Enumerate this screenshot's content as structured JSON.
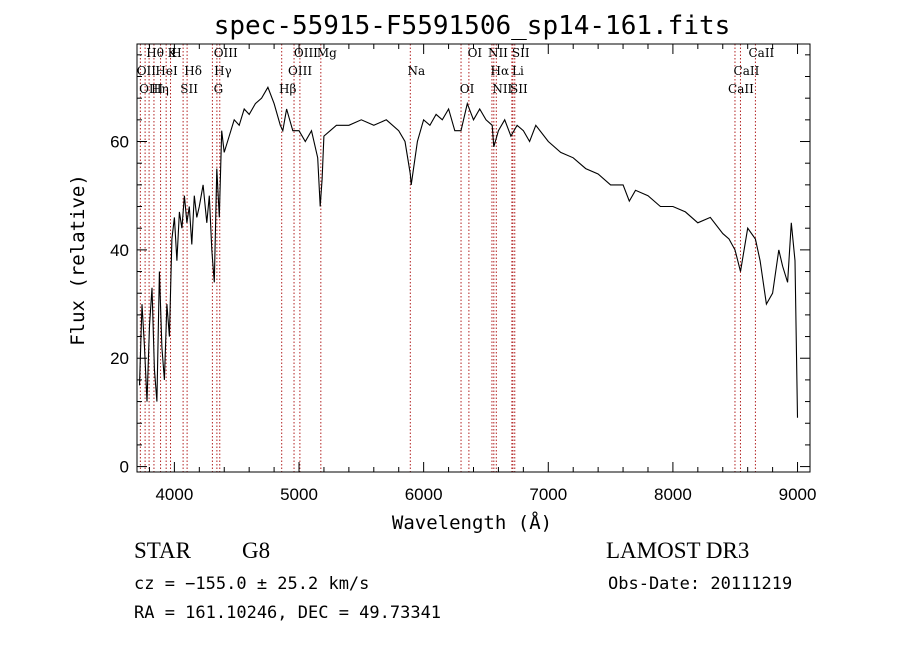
{
  "chart_data": {
    "type": "line",
    "title": "spec-55915-F5591506_sp14-161.fits",
    "xlabel": "Wavelength (Å)",
    "ylabel": "Flux (relative)",
    "xlim": [
      3700,
      9100
    ],
    "ylim": [
      -1,
      78
    ],
    "xticks": [
      4000,
      5000,
      6000,
      7000,
      8000,
      9000
    ],
    "yticks": [
      0,
      20,
      40,
      60
    ],
    "series": [
      {
        "name": "flux",
        "x": [
          3720,
          3740,
          3760,
          3780,
          3800,
          3820,
          3840,
          3860,
          3880,
          3900,
          3920,
          3940,
          3960,
          3980,
          4000,
          4020,
          4040,
          4060,
          4080,
          4100,
          4120,
          4140,
          4160,
          4180,
          4200,
          4230,
          4260,
          4280,
          4300,
          4320,
          4340,
          4360,
          4380,
          4400,
          4440,
          4480,
          4520,
          4560,
          4600,
          4650,
          4700,
          4750,
          4800,
          4850,
          4870,
          4900,
          4950,
          5000,
          5050,
          5100,
          5150,
          5170,
          5185,
          5200,
          5250,
          5300,
          5400,
          5500,
          5600,
          5700,
          5800,
          5850,
          5893,
          5900,
          5950,
          6000,
          6050,
          6100,
          6150,
          6200,
          6250,
          6300,
          6350,
          6400,
          6450,
          6500,
          6550,
          6563,
          6600,
          6650,
          6700,
          6750,
          6800,
          6850,
          6900,
          7000,
          7100,
          7200,
          7300,
          7400,
          7500,
          7600,
          7650,
          7700,
          7800,
          7900,
          8000,
          8100,
          8200,
          8300,
          8400,
          8450,
          8498,
          8542,
          8600,
          8662,
          8700,
          8750,
          8800,
          8850,
          8880,
          8920,
          8950,
          8980,
          9000
        ],
        "y": [
          15,
          30,
          22,
          12,
          26,
          33,
          18,
          12,
          36,
          22,
          16,
          30,
          24,
          42,
          46,
          38,
          47,
          44,
          50,
          45,
          48,
          41,
          50,
          46,
          48,
          52,
          45,
          50,
          40,
          34,
          55,
          46,
          62,
          58,
          61,
          64,
          63,
          66,
          65,
          67,
          68,
          70,
          67,
          63,
          62,
          66,
          62,
          62,
          60,
          62,
          57,
          48,
          53,
          61,
          62,
          63,
          63,
          64,
          63,
          64,
          62,
          60,
          54,
          52,
          60,
          64,
          63,
          65,
          64,
          66,
          62,
          62,
          67,
          64,
          66,
          64,
          63,
          59,
          62,
          64,
          61,
          63,
          62,
          60,
          63,
          60,
          58,
          57,
          55,
          54,
          52,
          52,
          49,
          51,
          50,
          48,
          48,
          47,
          45,
          46,
          43,
          42,
          40,
          36,
          44,
          42,
          38,
          30,
          32,
          40,
          37,
          34,
          45,
          38,
          9
        ],
        "color": "#000000"
      }
    ],
    "lines": [
      {
        "label": "Hθ",
        "x": 3797,
        "color": "#b22222"
      },
      {
        "label": "OII",
        "x": 3727,
        "color": "#b22222"
      },
      {
        "label": "OIII",
        "x": 3765,
        "color": "#b22222"
      },
      {
        "label": "K",
        "x": 3934,
        "color": "#b22222"
      },
      {
        "label": "HeI",
        "x": 3889,
        "color": "#b22222"
      },
      {
        "label": "Hη",
        "x": 3836,
        "color": "#b22222"
      },
      {
        "label": "H",
        "x": 3969,
        "color": "#b22222"
      },
      {
        "label": "Hδ",
        "x": 4102,
        "color": "#b22222"
      },
      {
        "label": "SII",
        "x": 4070,
        "color": "#b22222"
      },
      {
        "label": "OIII",
        "x": 4364,
        "color": "#b22222"
      },
      {
        "label": "Hγ",
        "x": 4341,
        "color": "#b22222"
      },
      {
        "label": "G",
        "x": 4305,
        "color": "#b22222"
      },
      {
        "label": "OIII",
        "x": 5007,
        "color": "#b22222"
      },
      {
        "label": "OIII",
        "x": 4960,
        "color": "#b22222"
      },
      {
        "label": "Hβ",
        "x": 4861,
        "color": "#b22222"
      },
      {
        "label": "Mg",
        "x": 5175,
        "color": "#b22222"
      },
      {
        "label": "Na",
        "x": 5893,
        "color": "#b22222"
      },
      {
        "label": "OI",
        "x": 6300,
        "color": "#b22222"
      },
      {
        "label": "OI",
        "x": 6363,
        "color": "#b22222"
      },
      {
        "label": "Hα",
        "x": 6563,
        "color": "#b22222"
      },
      {
        "label": "SII",
        "x": 6716,
        "color": "#b22222"
      },
      {
        "label": "NII",
        "x": 6548,
        "color": "#b22222"
      },
      {
        "label": "Li",
        "x": 6708,
        "color": "#b22222"
      },
      {
        "label": "NII",
        "x": 6583,
        "color": "#b22222"
      },
      {
        "label": "SII",
        "x": 6731,
        "color": "#b22222"
      },
      {
        "label": "CaII",
        "x": 8542,
        "color": "#b22222"
      },
      {
        "label": "CaII",
        "x": 8498,
        "color": "#b22222"
      },
      {
        "label": "CaII",
        "x": 8662,
        "color": "#b22222"
      }
    ]
  },
  "info": {
    "object_class": "STAR",
    "subclass": "G8",
    "survey": "LAMOST DR3",
    "cz": "cz = −155.0 ± 25.2 km/s",
    "obs_date": "Obs-Date: 20111219",
    "coords": "RA = 161.10246, DEC =  49.73341"
  }
}
